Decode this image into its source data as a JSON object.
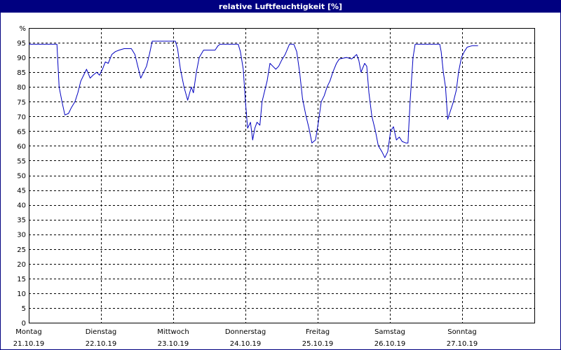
{
  "window": {
    "title": "relative Luftfeuchtigkeit [%]"
  },
  "colors": {
    "title_bg": "#000080",
    "line": "#0000c0",
    "grid": "#000000",
    "plot_bg": "#ffffff"
  },
  "chart_data": {
    "type": "line",
    "title": "relative Luftfeuchtigkeit [%]",
    "ylabel_unit": "%",
    "ylim": [
      0,
      100
    ],
    "y_ticks": [
      0,
      5,
      10,
      15,
      20,
      25,
      30,
      35,
      40,
      45,
      50,
      55,
      60,
      65,
      70,
      75,
      80,
      85,
      90,
      95
    ],
    "xlim": [
      0,
      7
    ],
    "x_unit": "days from Montag 21.10.19 00:00",
    "grid": true,
    "legend": "none",
    "x_ticks": [
      {
        "x": 0,
        "day": "Montag",
        "date": "21.10.19"
      },
      {
        "x": 1,
        "day": "Dienstag",
        "date": "22.10.19"
      },
      {
        "x": 2,
        "day": "Mittwoch",
        "date": "23.10.19"
      },
      {
        "x": 3,
        "day": "Donnerstag",
        "date": "24.10.19"
      },
      {
        "x": 4,
        "day": "Freitag",
        "date": "25.10.19"
      },
      {
        "x": 5,
        "day": "Samstag",
        "date": "26.10.19"
      },
      {
        "x": 6,
        "day": "Sonntag",
        "date": "27.10.19"
      }
    ],
    "series": [
      {
        "name": "",
        "points": [
          [
            0.0,
            94.5
          ],
          [
            0.39,
            94.5
          ],
          [
            0.42,
            80
          ],
          [
            0.46,
            75
          ],
          [
            0.5,
            70.5
          ],
          [
            0.55,
            71
          ],
          [
            0.59,
            73
          ],
          [
            0.64,
            75
          ],
          [
            0.68,
            78
          ],
          [
            0.72,
            82
          ],
          [
            0.76,
            84
          ],
          [
            0.8,
            86
          ],
          [
            0.85,
            83
          ],
          [
            0.89,
            84
          ],
          [
            0.94,
            85
          ],
          [
            0.98,
            84
          ],
          [
            1.02,
            86
          ],
          [
            1.06,
            88.5
          ],
          [
            1.1,
            88
          ],
          [
            1.15,
            91
          ],
          [
            1.2,
            92
          ],
          [
            1.25,
            92.5
          ],
          [
            1.32,
            93
          ],
          [
            1.42,
            93
          ],
          [
            1.47,
            91
          ],
          [
            1.51,
            87
          ],
          [
            1.55,
            83
          ],
          [
            1.59,
            85
          ],
          [
            1.63,
            87
          ],
          [
            1.67,
            91
          ],
          [
            1.71,
            95.5
          ],
          [
            2.03,
            95.5
          ],
          [
            2.06,
            93
          ],
          [
            2.1,
            86
          ],
          [
            2.15,
            80
          ],
          [
            2.2,
            75.5
          ],
          [
            2.25,
            80
          ],
          [
            2.28,
            78
          ],
          [
            2.32,
            85
          ],
          [
            2.36,
            90
          ],
          [
            2.42,
            92.5
          ],
          [
            2.58,
            92.5
          ],
          [
            2.62,
            94
          ],
          [
            2.65,
            94.5
          ],
          [
            2.9,
            94.5
          ],
          [
            2.93,
            92
          ],
          [
            2.97,
            86
          ],
          [
            3.0,
            75
          ],
          [
            3.03,
            66
          ],
          [
            3.07,
            68
          ],
          [
            3.1,
            62
          ],
          [
            3.13,
            66
          ],
          [
            3.16,
            68
          ],
          [
            3.2,
            67
          ],
          [
            3.23,
            75
          ],
          [
            3.27,
            79
          ],
          [
            3.3,
            82
          ],
          [
            3.34,
            88
          ],
          [
            3.38,
            87
          ],
          [
            3.42,
            86
          ],
          [
            3.46,
            87
          ],
          [
            3.5,
            89
          ],
          [
            3.55,
            91
          ],
          [
            3.61,
            94.5
          ],
          [
            3.67,
            94.5
          ],
          [
            3.71,
            92
          ],
          [
            3.75,
            85
          ],
          [
            3.79,
            76
          ],
          [
            3.84,
            70
          ],
          [
            3.88,
            66
          ],
          [
            3.92,
            61
          ],
          [
            3.97,
            62
          ],
          [
            4.01,
            68
          ],
          [
            4.05,
            75
          ],
          [
            4.09,
            77
          ],
          [
            4.13,
            80
          ],
          [
            4.17,
            82
          ],
          [
            4.21,
            85
          ],
          [
            4.26,
            88
          ],
          [
            4.3,
            89.5
          ],
          [
            4.4,
            90
          ],
          [
            4.47,
            89.5
          ],
          [
            4.54,
            91
          ],
          [
            4.57,
            89
          ],
          [
            4.6,
            85
          ],
          [
            4.65,
            88
          ],
          [
            4.68,
            87
          ],
          [
            4.71,
            78
          ],
          [
            4.75,
            70
          ],
          [
            4.8,
            65
          ],
          [
            4.84,
            60
          ],
          [
            4.89,
            58
          ],
          [
            4.93,
            56
          ],
          [
            4.97,
            58
          ],
          [
            5.01,
            65
          ],
          [
            5.05,
            66.5
          ],
          [
            5.09,
            62
          ],
          [
            5.13,
            63
          ],
          [
            5.17,
            61.5
          ],
          [
            5.22,
            61
          ],
          [
            5.25,
            61
          ],
          [
            5.28,
            75
          ],
          [
            5.32,
            90
          ],
          [
            5.35,
            94.5
          ],
          [
            5.69,
            94.5
          ],
          [
            5.71,
            92
          ],
          [
            5.74,
            85
          ],
          [
            5.77,
            80
          ],
          [
            5.8,
            69
          ],
          [
            5.84,
            72
          ],
          [
            5.88,
            75
          ],
          [
            5.92,
            79
          ],
          [
            5.95,
            85
          ],
          [
            5.99,
            90
          ],
          [
            6.03,
            92
          ],
          [
            6.07,
            93.5
          ],
          [
            6.14,
            94
          ],
          [
            6.22,
            94
          ]
        ]
      }
    ]
  }
}
